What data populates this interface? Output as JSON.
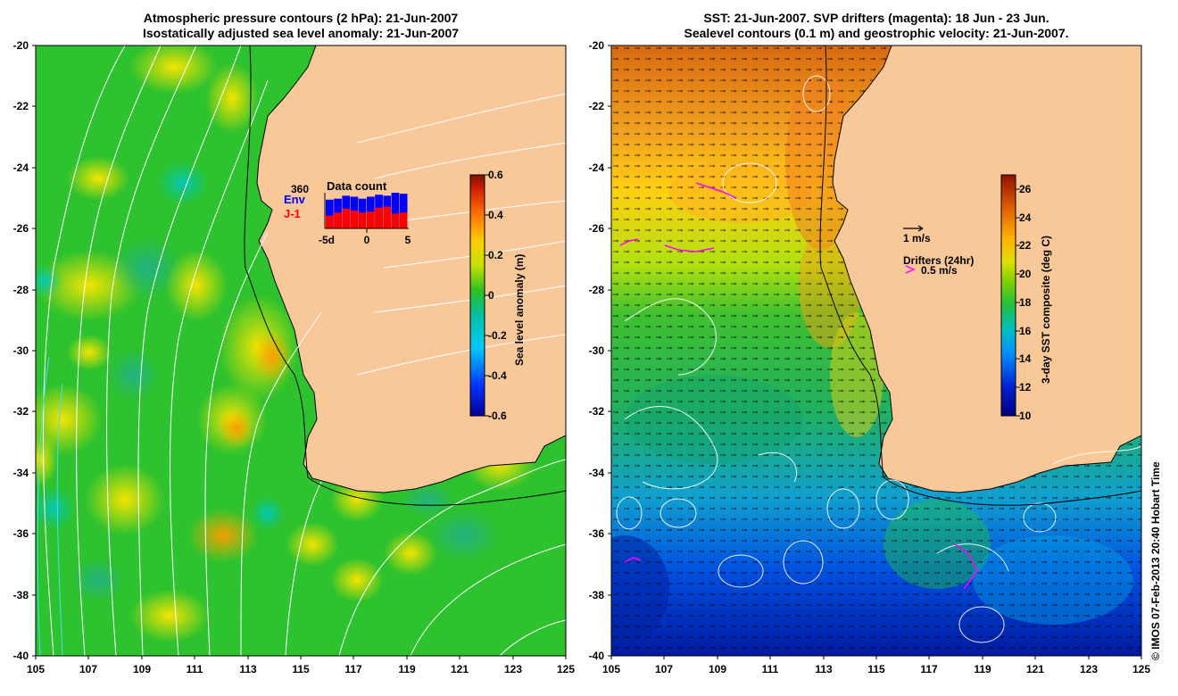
{
  "left_panel": {
    "title_line1": "Atmospheric pressure contours (2 hPa): 21-Jun-2007",
    "title_line2": "Isostatically adjusted sea level anomaly: 21-Jun-2007",
    "x_ticks": [
      "105",
      "107",
      "109",
      "111",
      "113",
      "115",
      "117",
      "119",
      "121",
      "123",
      "125"
    ],
    "y_ticks": [
      "-20",
      "-22",
      "-24",
      "-26",
      "-28",
      "-30",
      "-32",
      "-34",
      "-36",
      "-38",
      "-40"
    ],
    "colorbar": {
      "label": "Sea level anomaly (m)",
      "ticks": [
        "0.6",
        "0.4",
        "0.2",
        "0",
        "-0.2",
        "-0.4",
        "-0.6"
      ],
      "range": [
        -0.6,
        0.6
      ]
    },
    "inset": {
      "title": "Data count",
      "max_label": "360",
      "series": [
        {
          "name": "Env",
          "color": "#0000ff",
          "values": [
            290,
            300,
            330,
            320,
            300,
            320,
            340,
            330,
            360,
            350
          ]
        },
        {
          "name": "J-1",
          "color": "#ff0000",
          "values": [
            130,
            160,
            200,
            180,
            160,
            170,
            210,
            220,
            150,
            160
          ]
        }
      ],
      "x_ticks": [
        "-5d",
        "0",
        "5"
      ]
    }
  },
  "right_panel": {
    "title_line1": "SST: 21-Jun-2007. SVP drifters (magenta): 18 Jun - 23 Jun.",
    "title_line2": "Sealevel contours (0.1 m) and geostrophic velocity: 21-Jun-2007.",
    "x_ticks": [
      "105",
      "107",
      "109",
      "111",
      "113",
      "115",
      "117",
      "119",
      "121",
      "123",
      "125"
    ],
    "y_ticks": [
      "-20",
      "-22",
      "-24",
      "-26",
      "-28",
      "-30",
      "-32",
      "-34",
      "-36",
      "-38",
      "-40"
    ],
    "colorbar": {
      "label": "3-day SST composite (deg C)",
      "ticks": [
        "26",
        "24",
        "22",
        "20",
        "18",
        "16",
        "14",
        "12",
        "10"
      ],
      "range": [
        10,
        27
      ]
    },
    "legend": {
      "velocity": "1 m/s",
      "drifters_title": "Drifters (24hr)",
      "drifters_scale": "0.5 m/s"
    }
  },
  "copyright": "© IMOS 07-Feb-2013 20:40 Hobart Time",
  "colors": {
    "land": "#f9c899",
    "land_right": "#f9c899",
    "drifter": "#ff00ff"
  }
}
